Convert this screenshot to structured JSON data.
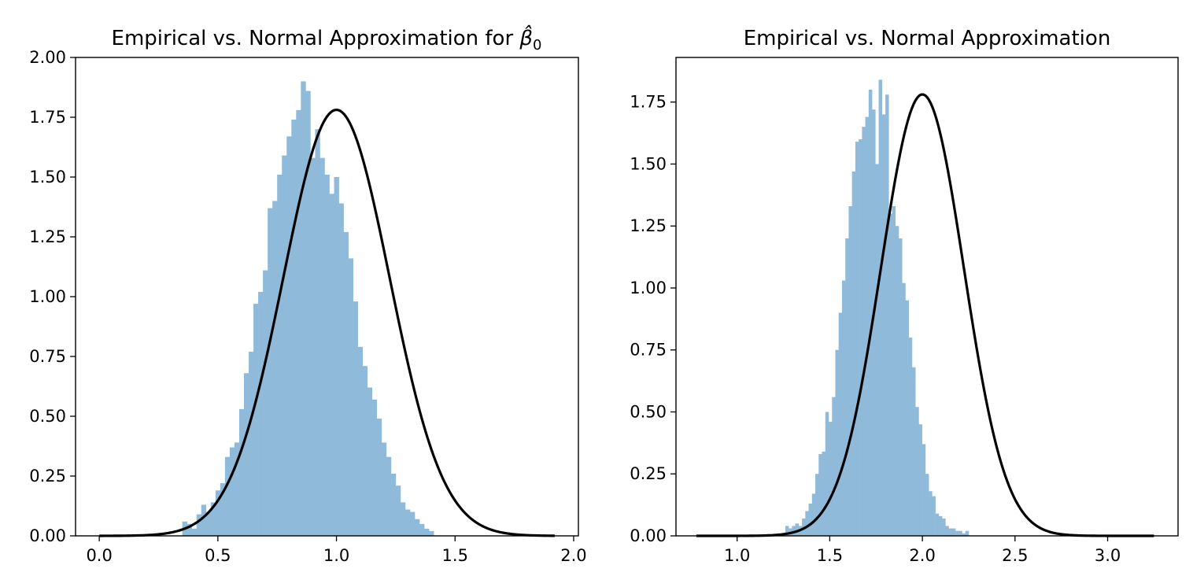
{
  "chart_data": [
    {
      "type": "histogram",
      "title": "Empirical vs. Normal Approximation for β̂₀",
      "title_text": "Empirical vs. Normal Approximation for ",
      "title_symbol": "β̂",
      "title_subscript": "0",
      "xlim": [
        -0.1,
        2.02
      ],
      "ylim": [
        0,
        2.0
      ],
      "xticks": [
        "0.0",
        "0.5",
        "1.0",
        "1.5",
        "2.0"
      ],
      "yticks": [
        "0.00",
        "0.25",
        "0.50",
        "0.75",
        "1.00",
        "1.25",
        "1.50",
        "1.75",
        "2.00"
      ],
      "bar_color": "#8fbad9",
      "curve_color": "#000000",
      "histogram": {
        "bin_start": 0.35,
        "bin_width": 0.02,
        "values": [
          0.06,
          0.05,
          0.03,
          0.09,
          0.13,
          0.1,
          0.14,
          0.19,
          0.22,
          0.33,
          0.37,
          0.39,
          0.53,
          0.68,
          0.77,
          0.97,
          1.02,
          1.11,
          1.37,
          1.4,
          1.51,
          1.59,
          1.67,
          1.74,
          1.78,
          1.9,
          1.86,
          1.58,
          1.7,
          1.58,
          1.51,
          1.43,
          1.5,
          1.39,
          1.27,
          1.16,
          0.98,
          0.79,
          0.71,
          0.62,
          0.57,
          0.49,
          0.39,
          0.33,
          0.26,
          0.21,
          0.14,
          0.11,
          0.1,
          0.07,
          0.05,
          0.03,
          0.02
        ]
      },
      "normal_curve": {
        "mean": 1.0,
        "std": 0.224,
        "x_range": [
          0.0,
          1.92
        ]
      }
    },
    {
      "type": "histogram",
      "title": "Empirical vs. Normal Approximation",
      "xlim": [
        0.67,
        3.38
      ],
      "ylim": [
        0,
        1.93
      ],
      "xticks": [
        "1.0",
        "1.5",
        "2.0",
        "2.5",
        "3.0"
      ],
      "yticks": [
        "0.00",
        "0.25",
        "0.50",
        "0.75",
        "1.00",
        "1.25",
        "1.50",
        "1.75"
      ],
      "bar_color": "#8fbad9",
      "curve_color": "#000000",
      "histogram": {
        "bin_start": 1.26,
        "bin_width": 0.018,
        "values": [
          0.04,
          0.03,
          0.04,
          0.05,
          0.04,
          0.07,
          0.1,
          0.13,
          0.17,
          0.25,
          0.33,
          0.34,
          0.5,
          0.46,
          0.56,
          0.75,
          0.9,
          1.03,
          1.2,
          1.33,
          1.47,
          1.59,
          1.6,
          1.65,
          1.69,
          1.8,
          1.72,
          1.5,
          1.84,
          1.7,
          1.78,
          1.3,
          1.33,
          1.25,
          1.2,
          1.02,
          0.95,
          0.8,
          0.68,
          0.52,
          0.45,
          0.37,
          0.25,
          0.18,
          0.16,
          0.09,
          0.08,
          0.07,
          0.04,
          0.03,
          0.03,
          0.02,
          0.02,
          0.01,
          0.02
        ]
      },
      "normal_curve": {
        "mean": 2.0,
        "std": 0.224,
        "x_range": [
          0.78,
          3.25
        ]
      }
    }
  ]
}
